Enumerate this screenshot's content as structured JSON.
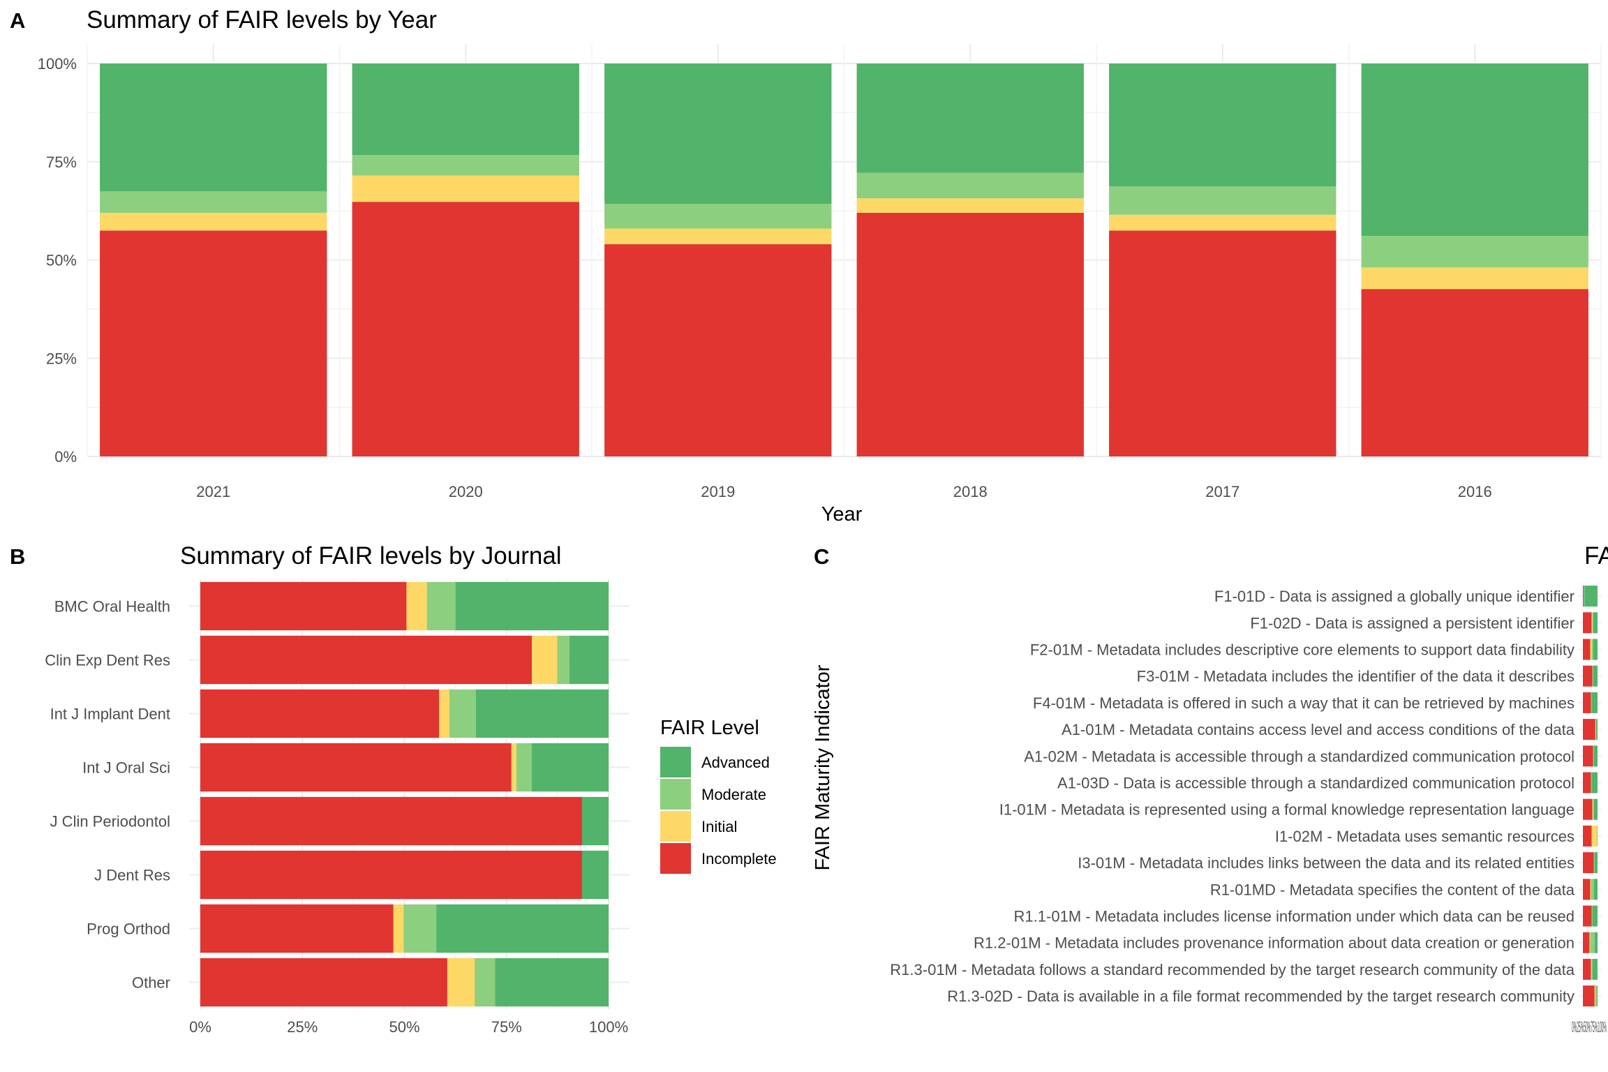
{
  "colors": {
    "Advanced": "#52b36a",
    "Moderate": "#8ccf7e",
    "Initial": "#fdd866",
    "Incomplete": "#e03531"
  },
  "legend": {
    "title": "FAIR Level",
    "items": [
      "Advanced",
      "Moderate",
      "Initial",
      "Incomplete"
    ]
  },
  "chart_data": [
    {
      "panel": "A",
      "type": "bar",
      "stacked": true,
      "title": "Summary of FAIR levels by Year",
      "xlabel": "Year",
      "ylabel": "",
      "ylim": [
        0,
        1
      ],
      "y_ticks": [
        "0%",
        "25%",
        "50%",
        "75%",
        "100%"
      ],
      "categories": [
        "2021",
        "2020",
        "2019",
        "2018",
        "2017",
        "2016"
      ],
      "series": [
        {
          "name": "Incomplete",
          "values": [
            0.575,
            0.648,
            0.54,
            0.62,
            0.575,
            0.426
          ]
        },
        {
          "name": "Initial",
          "values": [
            0.045,
            0.067,
            0.04,
            0.037,
            0.04,
            0.055
          ]
        },
        {
          "name": "Moderate",
          "values": [
            0.055,
            0.052,
            0.063,
            0.065,
            0.072,
            0.08
          ]
        },
        {
          "name": "Advanced",
          "values": [
            0.325,
            0.233,
            0.357,
            0.278,
            0.313,
            0.439
          ]
        }
      ]
    },
    {
      "panel": "B",
      "type": "bar",
      "orientation": "horizontal",
      "stacked": true,
      "title": "Summary of FAIR levels by Journal",
      "xlabel": "",
      "ylabel": "",
      "xlim": [
        0,
        1
      ],
      "x_ticks": [
        "0%",
        "25%",
        "50%",
        "75%",
        "100%"
      ],
      "categories": [
        "BMC Oral Health",
        "Clin Exp Dent Res",
        "Int J Implant Dent",
        "Int J Oral Sci",
        "J Clin Periodontol",
        "J Dent Res",
        "Prog Orthod",
        "Other"
      ],
      "series": [
        {
          "name": "Incomplete",
          "values": [
            0.505,
            0.812,
            0.585,
            0.762,
            0.935,
            0.935,
            0.473,
            0.605
          ]
        },
        {
          "name": "Initial",
          "values": [
            0.05,
            0.062,
            0.025,
            0.012,
            0,
            0,
            0.025,
            0.067
          ]
        },
        {
          "name": "Moderate",
          "values": [
            0.07,
            0.03,
            0.065,
            0.038,
            0,
            0,
            0.08,
            0.05
          ]
        },
        {
          "name": "Advanced",
          "values": [
            0.375,
            0.096,
            0.325,
            0.188,
            0.065,
            0.065,
            0.422,
            0.278
          ]
        }
      ]
    },
    {
      "panel": "C",
      "type": "bar",
      "orientation": "horizontal",
      "stacked": true,
      "title": "FA",
      "ylabel": "FAIR Maturity Indicator",
      "x_tick_text": "0%25%50%75%100%",
      "categories": [
        "F1-01D - Data is assigned a globally unique identifier",
        "F1-02D - Data is assigned a persistent identifier",
        "F2-01M - Metadata includes descriptive core elements to support data findability",
        "F3-01M - Metadata includes the identifier of the data it describes",
        "F4-01M - Metadata is offered in such a way that it can be retrieved by machines",
        "A1-01M - Metadata contains access level and access conditions of the data",
        "A1-02M - Metadata is accessible through a standardized communication protocol",
        "A1-03D - Data is accessible through a standardized communication protocol",
        "I1-01M - Metadata is represented using a formal knowledge representation language",
        "I1-02M - Metadata uses semantic resources",
        "I3-01M - Metadata includes links between the data and its related entities",
        "R1-01MD - Metadata specifies the content of the data",
        "R1.1-01M - Metadata includes license information under which data can be reused",
        "R1.2-01M - Metadata includes provenance information about data creation or generation",
        "R1.3-01M - Metadata follows a standard recommended by the target research community of the data",
        "R1.3-02D - Data is available in a file format recommended by the target research community"
      ],
      "series": [
        {
          "name": "Incomplete",
          "values": [
            0.05,
            0.6,
            0.5,
            0.65,
            0.55,
            0.85,
            0.7,
            0.55,
            0.65,
            0.6,
            0.75,
            0.5,
            0.6,
            0.45,
            0.55,
            0.8
          ]
        },
        {
          "name": "Initial",
          "values": [
            0,
            0.05,
            0.1,
            0,
            0,
            0.05,
            0,
            0,
            0.05,
            0.35,
            0,
            0.05,
            0,
            0.05,
            0.05,
            0.05
          ]
        },
        {
          "name": "Moderate",
          "values": [
            0.05,
            0.05,
            0.1,
            0.05,
            0.05,
            0,
            0.05,
            0.05,
            0.05,
            0.05,
            0.05,
            0.2,
            0.05,
            0.3,
            0.05,
            0.1
          ]
        },
        {
          "name": "Advanced",
          "values": [
            0.9,
            0.3,
            0.3,
            0.3,
            0.4,
            0.1,
            0.25,
            0.4,
            0.25,
            0,
            0.2,
            0.25,
            0.35,
            0.2,
            0.35,
            0.05
          ]
        }
      ]
    }
  ]
}
